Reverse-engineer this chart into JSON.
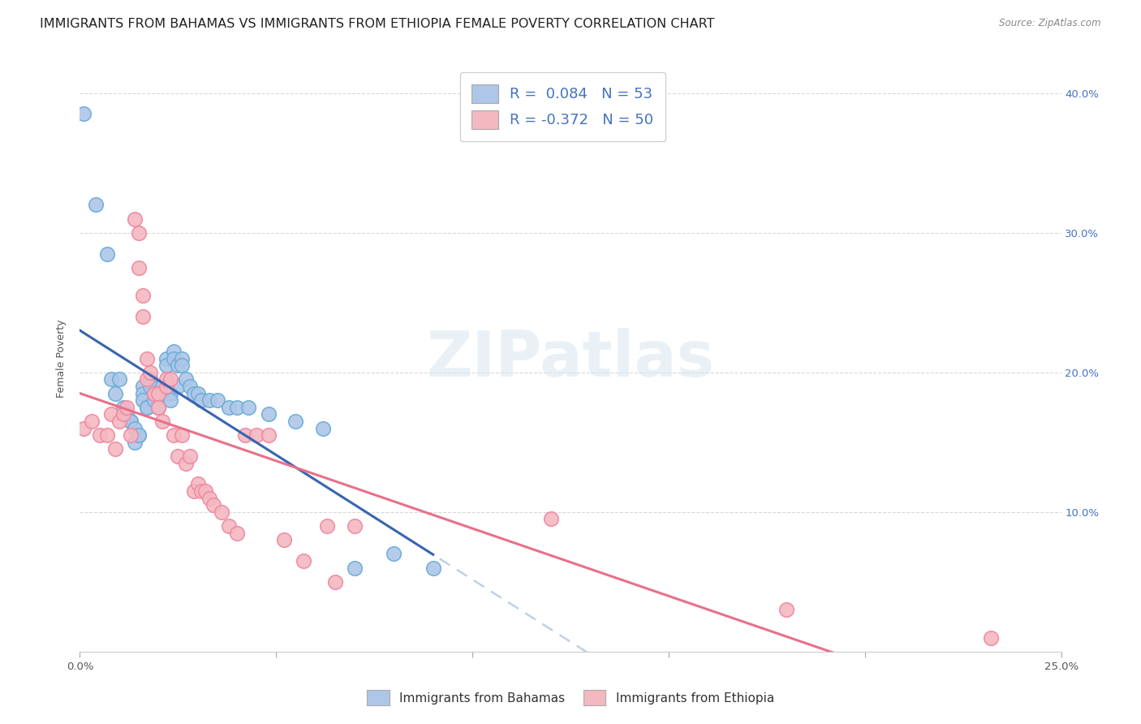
{
  "title": "IMMIGRANTS FROM BAHAMAS VS IMMIGRANTS FROM ETHIOPIA FEMALE POVERTY CORRELATION CHART",
  "source": "Source: ZipAtlas.com",
  "ylabel": "Female Poverty",
  "xlim": [
    0.0,
    0.25
  ],
  "ylim": [
    0.0,
    0.42
  ],
  "bahamas_color": "#aec6e8",
  "bahamas_edge": "#6aaed6",
  "ethiopia_color": "#f4b8c1",
  "ethiopia_edge": "#f088a0",
  "trendline_bahamas_color": "#3a65b0",
  "trendline_ethiopia_color": "#e8708a",
  "trendline_dashed_color": "#c0d0e8",
  "r_bahamas": 0.084,
  "r_ethiopia": -0.372,
  "n_bahamas": 53,
  "n_ethiopia": 50,
  "bahamas_label": "Immigrants from Bahamas",
  "ethiopia_label": "Immigrants from Ethiopia",
  "background_color": "#ffffff",
  "grid_color": "#d8d8d8",
  "watermark": "ZIPatlas",
  "title_fontsize": 11.5,
  "axis_label_fontsize": 9,
  "tick_fontsize": 9.5,
  "legend_fontsize": 13,
  "bahamas_x": [
    0.001,
    0.004,
    0.007,
    0.008,
    0.009,
    0.01,
    0.011,
    0.012,
    0.013,
    0.013,
    0.014,
    0.014,
    0.015,
    0.015,
    0.016,
    0.016,
    0.016,
    0.017,
    0.017,
    0.018,
    0.018,
    0.019,
    0.019,
    0.02,
    0.02,
    0.021,
    0.021,
    0.022,
    0.022,
    0.023,
    0.023,
    0.024,
    0.024,
    0.025,
    0.025,
    0.026,
    0.026,
    0.027,
    0.028,
    0.029,
    0.03,
    0.031,
    0.033,
    0.035,
    0.038,
    0.04,
    0.043,
    0.048,
    0.055,
    0.062,
    0.07,
    0.08,
    0.09
  ],
  "bahamas_y": [
    0.385,
    0.32,
    0.285,
    0.195,
    0.185,
    0.195,
    0.175,
    0.17,
    0.165,
    0.165,
    0.16,
    0.15,
    0.155,
    0.155,
    0.19,
    0.185,
    0.18,
    0.175,
    0.175,
    0.195,
    0.19,
    0.185,
    0.18,
    0.175,
    0.175,
    0.19,
    0.185,
    0.21,
    0.205,
    0.185,
    0.18,
    0.215,
    0.21,
    0.205,
    0.19,
    0.21,
    0.205,
    0.195,
    0.19,
    0.185,
    0.185,
    0.18,
    0.18,
    0.18,
    0.175,
    0.175,
    0.175,
    0.17,
    0.165,
    0.16,
    0.06,
    0.07,
    0.06
  ],
  "ethiopia_x": [
    0.001,
    0.003,
    0.005,
    0.007,
    0.008,
    0.009,
    0.01,
    0.011,
    0.012,
    0.013,
    0.014,
    0.015,
    0.015,
    0.016,
    0.016,
    0.017,
    0.017,
    0.018,
    0.019,
    0.02,
    0.02,
    0.021,
    0.022,
    0.022,
    0.023,
    0.024,
    0.025,
    0.026,
    0.027,
    0.028,
    0.029,
    0.03,
    0.031,
    0.032,
    0.033,
    0.034,
    0.036,
    0.038,
    0.04,
    0.042,
    0.045,
    0.048,
    0.052,
    0.057,
    0.063,
    0.065,
    0.07,
    0.12,
    0.18,
    0.232
  ],
  "ethiopia_y": [
    0.16,
    0.165,
    0.155,
    0.155,
    0.17,
    0.145,
    0.165,
    0.17,
    0.175,
    0.155,
    0.31,
    0.3,
    0.275,
    0.255,
    0.24,
    0.195,
    0.21,
    0.2,
    0.185,
    0.185,
    0.175,
    0.165,
    0.19,
    0.195,
    0.195,
    0.155,
    0.14,
    0.155,
    0.135,
    0.14,
    0.115,
    0.12,
    0.115,
    0.115,
    0.11,
    0.105,
    0.1,
    0.09,
    0.085,
    0.155,
    0.155,
    0.155,
    0.08,
    0.065,
    0.09,
    0.05,
    0.09,
    0.095,
    0.03,
    0.01
  ]
}
